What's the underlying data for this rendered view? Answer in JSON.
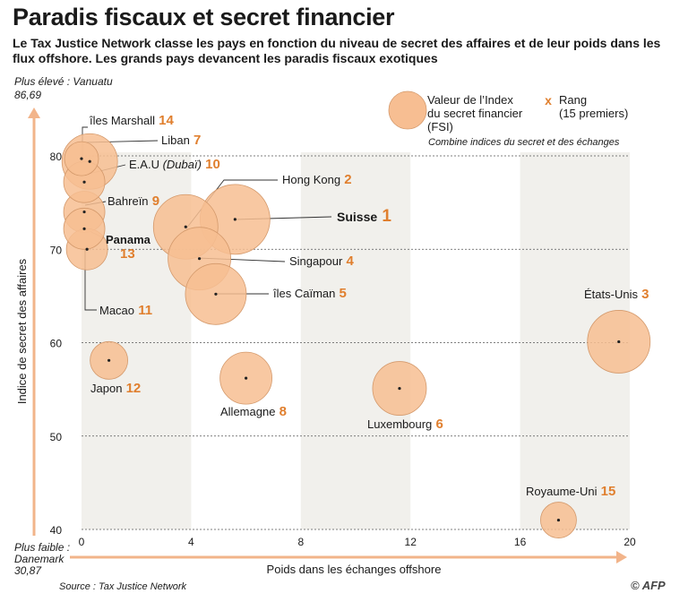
{
  "title": "Paradis fiscaux et secret financier",
  "subtitle": "Le Tax Justice Network classe les pays en fonction du niveau de secret des affaires et de leur poids dans les flux offshore. Les grands pays devancent les paradis fiscaux exotiques",
  "source": "Source : Tax Justice Network",
  "logo": "© AFP",
  "colors": {
    "bubble": "#f7be92",
    "bubble_stroke": "#d4996b",
    "rank": "#e07f2e",
    "band": "#f1f0ec",
    "axis_arrow": "#f2b48a"
  },
  "chart_data": {
    "type": "scatter",
    "xlabel": "Poids dans les échanges offshore",
    "ylabel": "Indice de secret des affaires",
    "xlim": [
      0,
      20
    ],
    "ylim": [
      40,
      80
    ],
    "xticks": [
      "0",
      "4",
      "8",
      "12",
      "16",
      "20"
    ],
    "yticks": [
      "40",
      "50",
      "60",
      "70",
      "80"
    ],
    "y_top_note": [
      "Plus élevé : Vanuatu",
      "86,69"
    ],
    "y_bottom_note": [
      "Plus faible :",
      "Danemark",
      "30,87"
    ],
    "legend": {
      "size_label": [
        "Valeur de l’Index",
        "du secret financier",
        "(FSI)"
      ],
      "rank_symbol": "x",
      "rank_label": [
        "Rang",
        "(15 premiers)"
      ],
      "note": "Combine indices du secret et des échanges"
    },
    "points": [
      {
        "name": "Suisse",
        "rank": "1",
        "x": 5.6,
        "y": 73.2,
        "bold": true
      },
      {
        "name": "Hong Kong",
        "rank": "2",
        "x": 3.8,
        "y": 72.4
      },
      {
        "name": "États-Unis",
        "rank": "3",
        "x": 19.6,
        "y": 60.1
      },
      {
        "name": "Singapour",
        "rank": "4",
        "x": 4.3,
        "y": 69.0
      },
      {
        "name": "îles Caïman",
        "rank": "5",
        "x": 4.9,
        "y": 65.2
      },
      {
        "name": "Luxembourg",
        "rank": "6",
        "x": 11.6,
        "y": 55.1
      },
      {
        "name": "Liban",
        "rank": "7",
        "x": 0.3,
        "y": 79.4
      },
      {
        "name": "Allemagne",
        "rank": "8",
        "x": 6.0,
        "y": 56.2
      },
      {
        "name": "Bahreïn",
        "rank": "9",
        "x": 0.1,
        "y": 74.0
      },
      {
        "name": "E.A.U",
        "name_extra": "(Dubaï)",
        "rank": "10",
        "x": 0.1,
        "y": 77.2
      },
      {
        "name": "Macao",
        "rank": "11",
        "x": 0.2,
        "y": 70.0
      },
      {
        "name": "Japon",
        "rank": "12",
        "x": 1.0,
        "y": 58.1
      },
      {
        "name": "Panama",
        "rank": "13",
        "x": 0.1,
        "y": 72.2,
        "bold": true
      },
      {
        "name": "îles Marshall",
        "rank": "14",
        "x": 0.0,
        "y": 79.7
      },
      {
        "name": "Royaume-Uni",
        "rank": "15",
        "x": 17.4,
        "y": 41.0
      }
    ]
  }
}
